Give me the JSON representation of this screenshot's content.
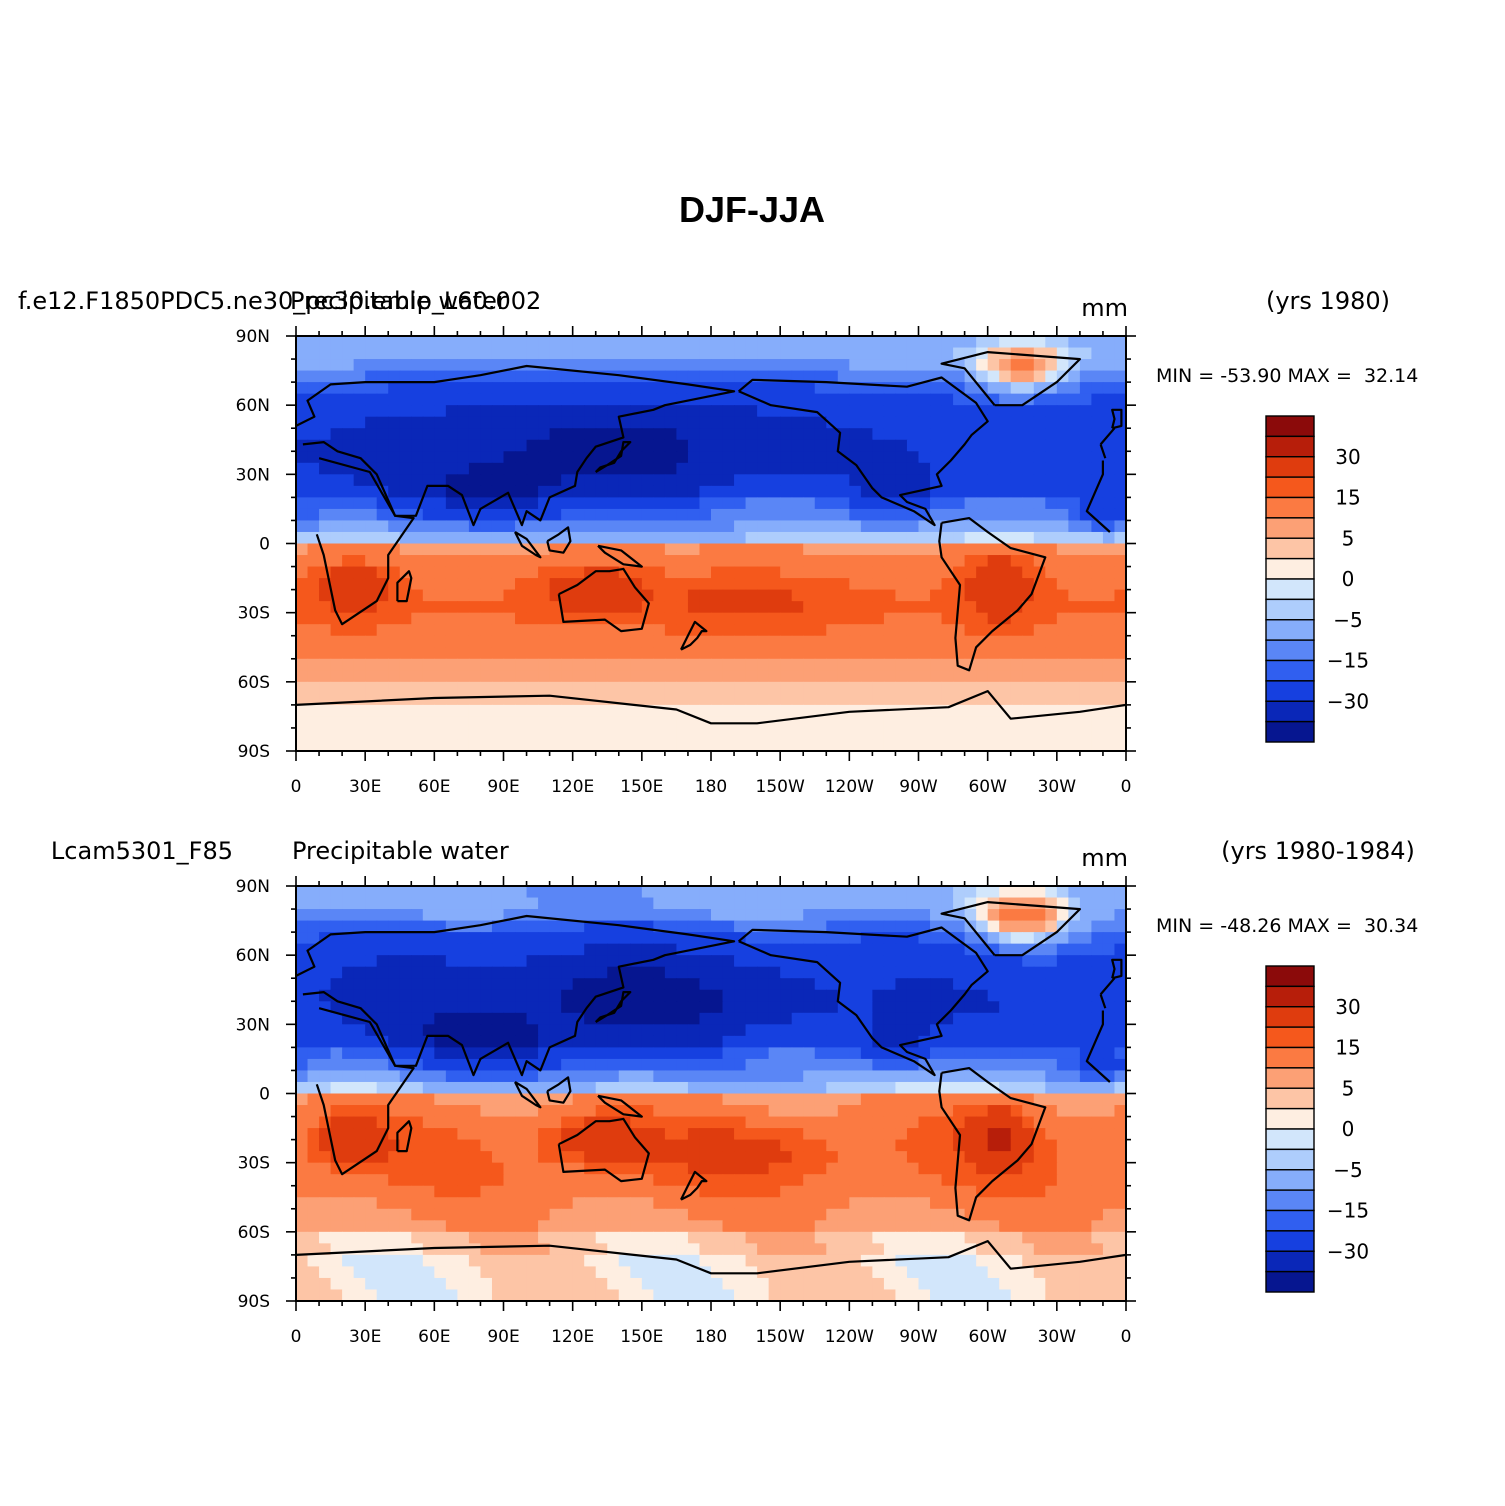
{
  "figure": {
    "title": "DJF-JJA"
  },
  "chart_data": [
    {
      "type": "heatmap",
      "case_name": "f.e12.F1850PDC5.ne30_pc30.emip_L60.002",
      "variable": "Precipitable water",
      "units": "mm",
      "years": "(yrs 1980)",
      "stats_text": "MIN = -53.90 MAX =  32.14",
      "min": -53.9,
      "max": 32.14,
      "x_ticks": [
        "0",
        "30E",
        "60E",
        "90E",
        "120E",
        "150E",
        "180",
        "150W",
        "120W",
        "90W",
        "60W",
        "30W",
        "0"
      ],
      "y_ticks": [
        "90N",
        "60N",
        "30N",
        "0",
        "30S",
        "60S",
        "90S"
      ],
      "xlim": [
        0,
        360
      ],
      "ylim": [
        -90,
        90
      ],
      "contour_levels": [
        -40,
        -30,
        -20,
        -15,
        -10,
        -5,
        -2,
        0,
        2,
        5,
        10,
        15,
        20,
        30,
        40
      ],
      "colorbar_labels": [
        "30",
        "15",
        "5",
        "0",
        "-5",
        "-15",
        "-30"
      ],
      "colorbar_colors": [
        "#8b0a0a",
        "#b71e0a",
        "#df3c0e",
        "#f5581c",
        "#fb7a42",
        "#fca075",
        "#fdc5a6",
        "#feeee1",
        "#d2e6fb",
        "#aecdfc",
        "#86adfb",
        "#5a86f6",
        "#305ff0",
        "#1640e0",
        "#0a27b8",
        "#061690"
      ]
    },
    {
      "type": "heatmap",
      "case_name": "Lcam5301_F85",
      "variable": "Precipitable water",
      "units": "mm",
      "years": "(yrs 1980-1984)",
      "stats_text": "MIN = -48.26 MAX =  30.34",
      "min": -48.26,
      "max": 30.34,
      "x_ticks": [
        "0",
        "30E",
        "60E",
        "90E",
        "120E",
        "150E",
        "180",
        "150W",
        "120W",
        "90W",
        "60W",
        "30W",
        "0"
      ],
      "y_ticks": [
        "90N",
        "60N",
        "30N",
        "0",
        "30S",
        "60S",
        "90S"
      ],
      "xlim": [
        0,
        360
      ],
      "ylim": [
        -90,
        90
      ],
      "contour_levels": [
        -40,
        -30,
        -20,
        -15,
        -10,
        -5,
        -2,
        0,
        2,
        5,
        10,
        15,
        20,
        30,
        40
      ],
      "colorbar_labels": [
        "30",
        "15",
        "5",
        "0",
        "-5",
        "-15",
        "-30"
      ],
      "colorbar_colors": [
        "#8b0a0a",
        "#b71e0a",
        "#df3c0e",
        "#f5581c",
        "#fb7a42",
        "#fca075",
        "#fdc5a6",
        "#feeee1",
        "#d2e6fb",
        "#aecdfc",
        "#86adfb",
        "#5a86f6",
        "#305ff0",
        "#1640e0",
        "#0a27b8",
        "#061690"
      ]
    }
  ]
}
